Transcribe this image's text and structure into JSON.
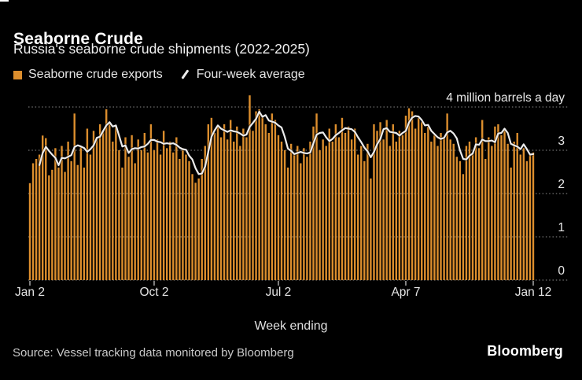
{
  "page": {
    "background": "#000000"
  },
  "header": {
    "title": "Seaborne Crude",
    "subtitle": "Russia's seaborne crude shipments (2022-2025)"
  },
  "legend": {
    "bar_label": "Seaborne crude exports",
    "line_label": "Four-week average"
  },
  "footer": {
    "source": "Source: Vessel tracking data monitored by Bloomberg",
    "brand": "Bloomberg"
  },
  "chart_data": {
    "type": "bar",
    "title": "Seaborne Crude",
    "unit": "million barrels a day",
    "frequency": "weekly",
    "style": {
      "background": "#000000",
      "bar_color": "#DC8E2D",
      "line_color": "#ECECEC",
      "grid_color": "#6F6F6F",
      "tick_color": "#B5B5B5",
      "grid": "dotted horizontal"
    },
    "x": {
      "label": "Week ending",
      "ticks": [
        {
          "label": "Jan 2",
          "index": 0
        },
        {
          "label": "Oct 2",
          "index": 39
        },
        {
          "label": "Jul 2",
          "index": 78
        },
        {
          "label": "Apr 7",
          "index": 118
        },
        {
          "label": "Jan 12",
          "index": 158
        }
      ]
    },
    "y": {
      "range": [
        0,
        4.4
      ],
      "ticks": [
        {
          "value": 4,
          "label": "4 million barrels a day"
        },
        {
          "value": 3,
          "label": "3"
        },
        {
          "value": 2,
          "label": "2"
        },
        {
          "value": 1,
          "label": "1"
        },
        {
          "value": 0,
          "label": "0"
        }
      ]
    },
    "series": [
      {
        "name": "Seaborne crude exports",
        "type": "bar",
        "color": "#DC8E2D",
        "values": [
          2.24,
          2.7,
          2.8,
          2.9,
          3.34,
          3.28,
          2.42,
          2.55,
          3.05,
          2.6,
          3.1,
          2.5,
          3.2,
          2.75,
          3.85,
          2.66,
          3.1,
          2.6,
          3.5,
          2.9,
          3.45,
          3.3,
          3.6,
          3.45,
          3.95,
          3.6,
          3.2,
          3.55,
          3.0,
          2.6,
          3.3,
          2.85,
          3.35,
          2.7,
          3.25,
          3.0,
          3.4,
          2.95,
          3.6,
          3.0,
          3.25,
          2.9,
          3.45,
          3.05,
          3.2,
          2.95,
          3.3,
          2.8,
          3.05,
          2.9,
          2.75,
          2.45,
          2.25,
          2.35,
          2.8,
          3.1,
          3.6,
          3.75,
          3.4,
          3.55,
          3.3,
          3.6,
          3.25,
          3.7,
          3.2,
          3.55,
          3.1,
          3.5,
          3.3,
          4.27,
          3.45,
          3.9,
          3.95,
          3.8,
          3.6,
          3.4,
          3.85,
          3.7,
          3.35,
          3.2,
          3.0,
          2.6,
          3.15,
          2.9,
          3.1,
          2.7,
          3.05,
          2.85,
          3.2,
          3.55,
          3.85,
          3.0,
          3.25,
          3.1,
          3.5,
          3.2,
          3.6,
          3.3,
          3.75,
          3.4,
          3.55,
          3.25,
          3.5,
          2.9,
          3.1,
          2.75,
          3.15,
          2.35,
          3.6,
          3.45,
          3.65,
          3.25,
          3.7,
          3.1,
          3.6,
          3.2,
          3.45,
          3.35,
          3.8,
          3.97,
          3.9,
          3.5,
          3.75,
          3.65,
          3.4,
          3.55,
          3.2,
          3.35,
          3.1,
          3.4,
          3.3,
          3.85,
          3.25,
          3.15,
          2.85,
          2.75,
          2.45,
          3.1,
          3.2,
          2.95,
          3.3,
          3.05,
          3.7,
          2.8,
          3.3,
          3.1,
          3.55,
          3.6,
          3.35,
          3.5,
          3.15,
          2.6,
          3.2,
          3.4,
          2.9,
          3.05,
          2.75,
          2.9,
          2.95
        ]
      },
      {
        "name": "Four-week average",
        "type": "line",
        "color": "#ECECEC",
        "derived_from": "4-week rolling mean of bar values"
      }
    ]
  }
}
